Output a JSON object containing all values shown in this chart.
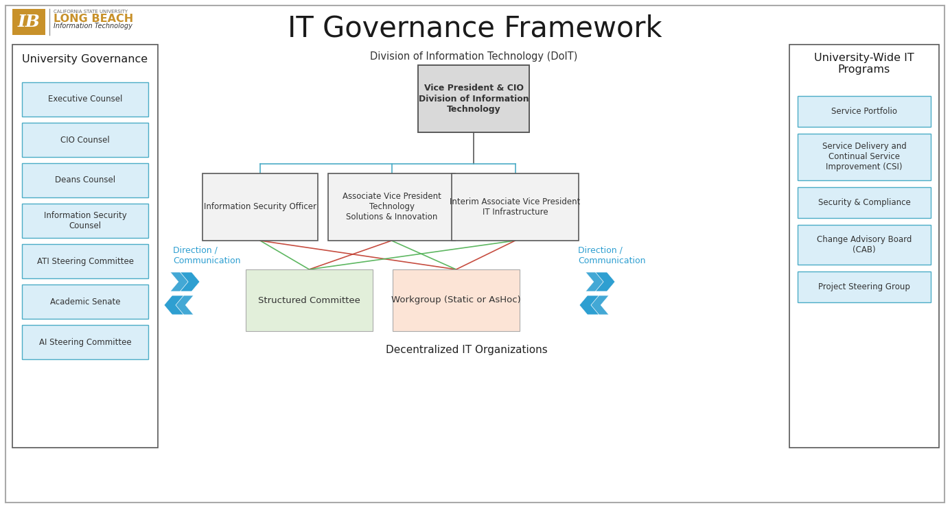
{
  "title": "IT Governance Framework",
  "subtitle_center": "Division of Information Technology (DoIT)",
  "background_color": "#ffffff",
  "left_panel_title": "University Governance",
  "left_panel_items": [
    "Executive Counsel",
    "CIO Counsel",
    "Deans Counsel",
    "Information Security\nCounsel",
    "ATI Steering Committee",
    "Academic Senate",
    "AI Steering Committee"
  ],
  "right_panel_title": "University-Wide IT\nPrograms",
  "right_panel_items": [
    "Service Portfolio",
    "Service Delivery and\nContinual Service\nImprovement (CSI)",
    "Security & Compliance",
    "Change Advisory Board\n(CAB)",
    "Project Steering Group"
  ],
  "center_top_box": "Vice President & CIO\nDivision of Information\nTechnology",
  "center_mid_boxes": [
    "Information Security Officer",
    "Associate Vice President\nTechnology\nSolutions & Innovation",
    "Interim Associate Vice President\nIT Infrastructure"
  ],
  "bottom_left_box": "Structured Committee",
  "bottom_right_box": "Workgroup (Static or AsHoc)",
  "bottom_label": "Decentralized IT Organizations",
  "direction_label": "Direction /\nCommunication",
  "light_blue_fill": "#daeef8",
  "light_blue_border": "#4bacc6",
  "gray_fill": "#d9d9d9",
  "gray_border": "#595959",
  "mid_box_fill": "#f2f2f2",
  "mid_box_border": "#595959",
  "green_fill": "#e2efda",
  "pink_fill": "#fce4d6",
  "panel_border": "#595959",
  "cyan_arrow": "#2e9fd1",
  "red_line": "#c0392b",
  "green_line": "#4caf50",
  "connector_color": "#4bacc6",
  "vp_connector_color": "#595959"
}
